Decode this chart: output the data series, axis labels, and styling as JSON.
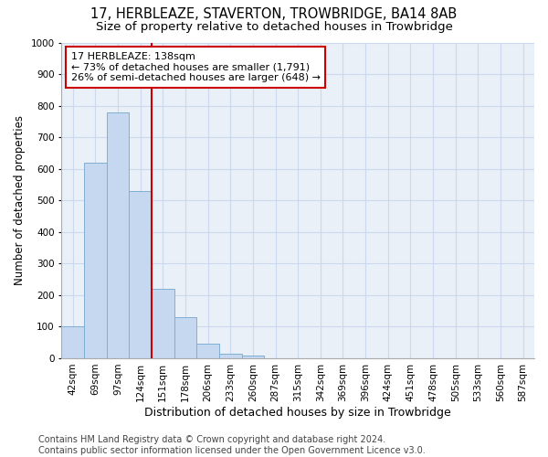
{
  "title1": "17, HERBLEAZE, STAVERTON, TROWBRIDGE, BA14 8AB",
  "title2": "Size of property relative to detached houses in Trowbridge",
  "xlabel": "Distribution of detached houses by size in Trowbridge",
  "ylabel": "Number of detached properties",
  "categories": [
    "42sqm",
    "69sqm",
    "97sqm",
    "124sqm",
    "151sqm",
    "178sqm",
    "206sqm",
    "233sqm",
    "260sqm",
    "287sqm",
    "315sqm",
    "342sqm",
    "369sqm",
    "396sqm",
    "424sqm",
    "451sqm",
    "478sqm",
    "505sqm",
    "533sqm",
    "560sqm",
    "587sqm"
  ],
  "values": [
    100,
    620,
    780,
    530,
    220,
    130,
    45,
    15,
    10,
    0,
    0,
    0,
    0,
    0,
    0,
    0,
    0,
    0,
    0,
    0,
    0
  ],
  "bar_color": "#c5d8f0",
  "bar_edge_color": "#7fafd4",
  "vline_x": 3.5,
  "vline_color": "#cc0000",
  "ylim": [
    0,
    1000
  ],
  "yticks": [
    0,
    100,
    200,
    300,
    400,
    500,
    600,
    700,
    800,
    900,
    1000
  ],
  "annotation_text": "17 HERBLEAZE: 138sqm\n← 73% of detached houses are smaller (1,791)\n26% of semi-detached houses are larger (648) →",
  "annotation_box_facecolor": "#ffffff",
  "annotation_border_color": "#cc0000",
  "footer_text": "Contains HM Land Registry data © Crown copyright and database right 2024.\nContains public sector information licensed under the Open Government Licence v3.0.",
  "title1_fontsize": 10.5,
  "title2_fontsize": 9.5,
  "xlabel_fontsize": 9,
  "ylabel_fontsize": 8.5,
  "annotation_fontsize": 8,
  "footer_fontsize": 7,
  "tick_fontsize": 7.5,
  "grid_color": "#ccd8ee",
  "background_color": "#eaf0f8"
}
